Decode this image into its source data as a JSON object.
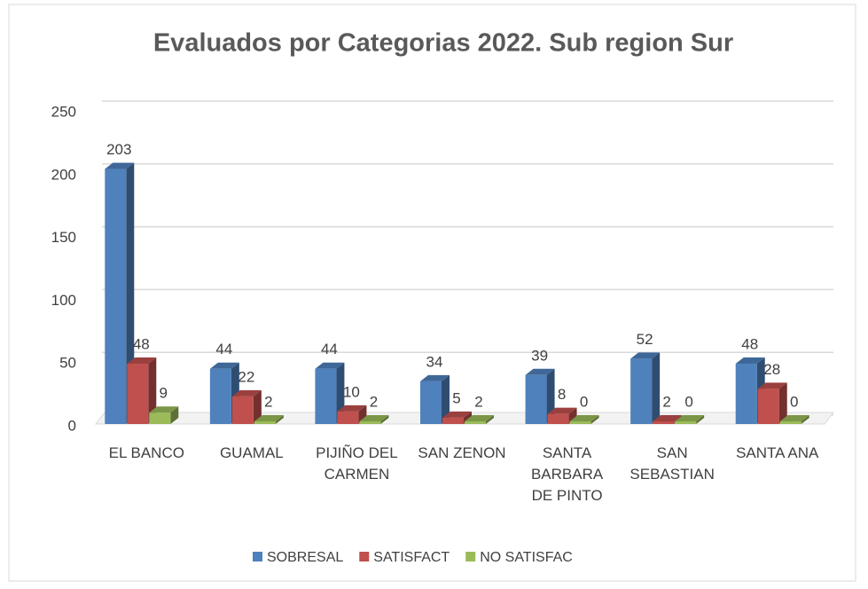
{
  "chart_data": {
    "type": "bar3d",
    "title": "Evaluados por Categorias 2022. Sub region Sur",
    "categories": [
      "EL BANCO",
      "GUAMAL",
      "PIJIÑO DEL CARMEN",
      "SAN ZENON",
      "SANTA BARBARA DE PINTO",
      "SAN SEBASTIAN",
      "SANTA ANA"
    ],
    "series": [
      {
        "name": "SOBRESAL",
        "color": "#4f81bd",
        "values": [
          203,
          44,
          44,
          34,
          39,
          52,
          48
        ]
      },
      {
        "name": "SATISFACT",
        "color": "#c0504d",
        "values": [
          48,
          22,
          10,
          5,
          8,
          2,
          28
        ]
      },
      {
        "name": "NO SATISFAC",
        "color": "#9bbb59",
        "values": [
          9,
          2,
          2,
          2,
          0,
          0,
          0
        ]
      }
    ],
    "ylim": [
      0,
      250
    ],
    "yticks": [
      0,
      50,
      100,
      150,
      200,
      250
    ],
    "grid": true,
    "legend": "bottom"
  }
}
